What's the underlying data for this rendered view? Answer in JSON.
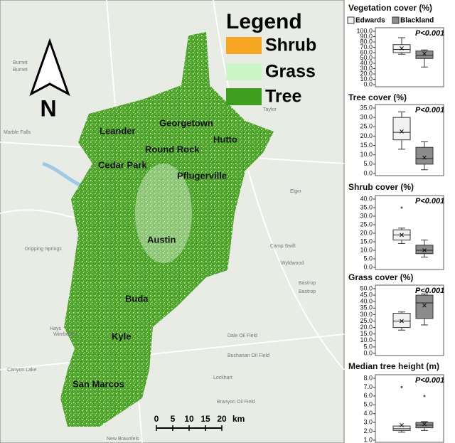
{
  "map": {
    "north": "N",
    "legend": {
      "title": "Legend",
      "items": [
        {
          "label": "Shrub",
          "color": "#f5a623"
        },
        {
          "label": "Grass",
          "color": "#ccf5c4"
        },
        {
          "label": "Tree",
          "color": "#3f9e1e"
        }
      ]
    },
    "cities": [
      "Leander",
      "Georgetown",
      "Hutto",
      "Round Rock",
      "Cedar Park",
      "Pflugerville",
      "Austin",
      "Buda",
      "Kyle",
      "San Marcos"
    ],
    "places": [
      "Burnet",
      "Burnet",
      "Marble Falls",
      "Taylor",
      "Elgin",
      "Camp Swift",
      "Wyldwood",
      "Bastrop",
      "Bastrop",
      "Dripping Springs",
      "Hays",
      "Wimberley",
      "Lockhart",
      "Dale Oil Field",
      "Buchanan Oil Field",
      "Branyon Oil Field",
      "New Braunfels",
      "Canyon Lake"
    ],
    "scale": {
      "ticks": [
        "0",
        "5",
        "10",
        "15",
        "20"
      ],
      "unit": "km"
    }
  },
  "chart_data": [
    {
      "type": "box",
      "title": "Vegetation cover (%)",
      "annotation": "P<0.001",
      "ylim": [
        0,
        100
      ],
      "yticks": [
        {
          "value": 0,
          "label": "0.0"
        },
        {
          "value": 10,
          "label": "10.0"
        },
        {
          "value": 20,
          "label": "20.0"
        },
        {
          "value": 30,
          "label": "30.0"
        },
        {
          "value": 40,
          "label": "40.0"
        },
        {
          "value": 50,
          "label": "50.0"
        },
        {
          "value": 60,
          "label": "60.0"
        },
        {
          "value": 70,
          "label": "70.0"
        },
        {
          "value": 80,
          "label": "80.0"
        },
        {
          "value": 90,
          "label": "90.0"
        },
        {
          "value": 100,
          "label": "100.0"
        }
      ],
      "series": [
        {
          "name": "Edwards",
          "color": "#f2f2f2",
          "min": 57,
          "q1": 60,
          "median": 66,
          "q3": 75,
          "max": 88,
          "mean": 68,
          "outliers": []
        },
        {
          "name": "Blackland",
          "color": "#8c8c8c",
          "min": 33,
          "q1": 49,
          "median": 55,
          "q3": 63,
          "max": 65,
          "mean": 58,
          "outliers": []
        }
      ]
    },
    {
      "type": "box",
      "title": "Tree cover (%)",
      "annotation": "P<0.001",
      "ylim": [
        0,
        35
      ],
      "yticks": [
        {
          "value": 0,
          "label": "0.0"
        },
        {
          "value": 5,
          "label": "5.0"
        },
        {
          "value": 10,
          "label": "10.0"
        },
        {
          "value": 15,
          "label": "15.0"
        },
        {
          "value": 20,
          "label": "20.0"
        },
        {
          "value": 25,
          "label": "25.0"
        },
        {
          "value": 30,
          "label": "30.0"
        },
        {
          "value": 35,
          "label": "35.0"
        }
      ],
      "series": [
        {
          "color": "#f2f2f2",
          "min": 13,
          "q1": 18,
          "median": 22,
          "q3": 30,
          "max": 33,
          "mean": 22.5,
          "outliers": []
        },
        {
          "color": "#8c8c8c",
          "min": 2,
          "q1": 5,
          "median": 8,
          "q3": 14,
          "max": 17,
          "mean": 8.5,
          "outliers": []
        }
      ]
    },
    {
      "type": "box",
      "title": "Shrub cover (%)",
      "annotation": "P<0.001",
      "ylim": [
        0,
        40
      ],
      "yticks": [
        {
          "value": 0,
          "label": "0.0"
        },
        {
          "value": 5,
          "label": "5.0"
        },
        {
          "value": 10,
          "label": "10.0"
        },
        {
          "value": 15,
          "label": "15.0"
        },
        {
          "value": 20,
          "label": "20.0"
        },
        {
          "value": 25,
          "label": "25.0"
        },
        {
          "value": 30,
          "label": "30.0"
        },
        {
          "value": 35,
          "label": "35.0"
        },
        {
          "value": 40,
          "label": "40.0"
        }
      ],
      "series": [
        {
          "color": "#f2f2f2",
          "min": 14,
          "q1": 16,
          "median": 19,
          "q3": 22,
          "max": 23,
          "mean": 19,
          "outliers": [
            35
          ]
        },
        {
          "color": "#8c8c8c",
          "min": 6,
          "q1": 8,
          "median": 10,
          "q3": 13,
          "max": 16,
          "mean": 10,
          "outliers": []
        }
      ]
    },
    {
      "type": "box",
      "title": "Grass cover (%)",
      "annotation": "P<0.001",
      "ylim": [
        0,
        50
      ],
      "yticks": [
        {
          "value": 0,
          "label": "0.0"
        },
        {
          "value": 5,
          "label": "5.0"
        },
        {
          "value": 10,
          "label": "10.0"
        },
        {
          "value": 15,
          "label": "15.0"
        },
        {
          "value": 20,
          "label": "20.0"
        },
        {
          "value": 25,
          "label": "25.0"
        },
        {
          "value": 30,
          "label": "30.0"
        },
        {
          "value": 35,
          "label": "35.0"
        },
        {
          "value": 40,
          "label": "40.0"
        },
        {
          "value": 45,
          "label": "45.0"
        },
        {
          "value": 50,
          "label": "50.0"
        }
      ],
      "series": [
        {
          "color": "#f2f2f2",
          "min": 18,
          "q1": 20,
          "median": 25,
          "q3": 31,
          "max": 32,
          "mean": 25,
          "outliers": []
        },
        {
          "color": "#8c8c8c",
          "min": 22,
          "q1": 27,
          "median": 39,
          "q3": 45,
          "max": 46,
          "mean": 37,
          "outliers": []
        }
      ]
    },
    {
      "type": "box",
      "title": "Median tree height (m)",
      "annotation": "P<0.001",
      "ylim": [
        1,
        8
      ],
      "yticks": [
        {
          "value": 1,
          "label": "1.0"
        },
        {
          "value": 2,
          "label": "2.0"
        },
        {
          "value": 3,
          "label": "3.0"
        },
        {
          "value": 4,
          "label": "4.0"
        },
        {
          "value": 5,
          "label": "5.0"
        },
        {
          "value": 6,
          "label": "6.0"
        },
        {
          "value": 7,
          "label": "7.0"
        },
        {
          "value": 8,
          "label": "8.0"
        }
      ],
      "series": [
        {
          "color": "#f2f2f2",
          "min": 1.9,
          "q1": 2.1,
          "median": 2.3,
          "q3": 2.6,
          "max": 2.6,
          "mean": 2.7,
          "outliers": [
            7
          ]
        },
        {
          "color": "#8c8c8c",
          "min": 2.1,
          "q1": 2.4,
          "median": 2.7,
          "q3": 3.0,
          "max": 3.1,
          "mean": 2.8,
          "outliers": [
            6
          ]
        }
      ]
    }
  ]
}
